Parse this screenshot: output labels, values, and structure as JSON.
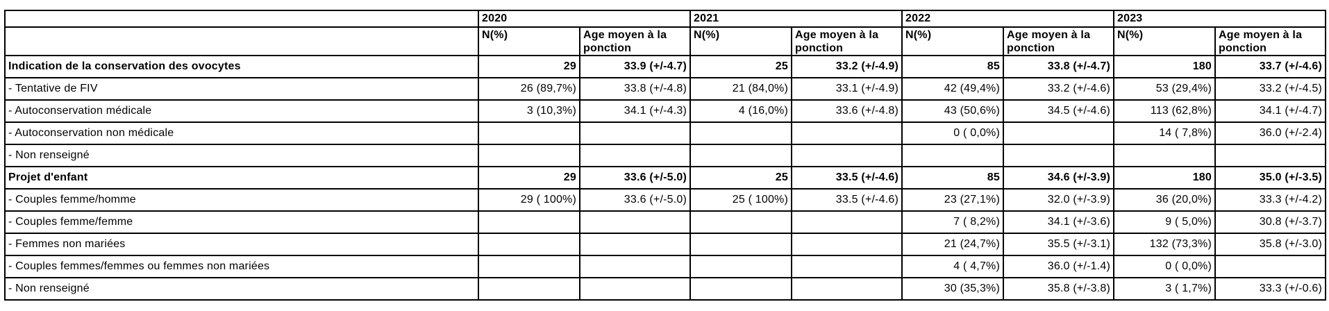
{
  "table": {
    "years": [
      "2020",
      "2021",
      "2022",
      "2023"
    ],
    "subheaders": {
      "n": "N(%)",
      "age": "Age moyen à la ponction"
    },
    "rows": [
      {
        "label": "Indication de la conservation des ovocytes",
        "bold": true,
        "cells": [
          "29",
          "33.9 (+/-4.7)",
          "25",
          "33.2 (+/-4.9)",
          "85",
          "33.8 (+/-4.7)",
          "180",
          "33.7 (+/-4.6)"
        ]
      },
      {
        "label": "- Tentative de FIV",
        "bold": false,
        "cells": [
          "26 (89,7%)",
          "33.8 (+/-4.8)",
          "21 (84,0%)",
          "33.1 (+/-4.9)",
          "42 (49,4%)",
          "33.2 (+/-4.6)",
          "53 (29,4%)",
          "33.2 (+/-4.5)"
        ]
      },
      {
        "label": "- Autoconservation médicale",
        "bold": false,
        "cells": [
          "3 (10,3%)",
          "34.1 (+/-4.3)",
          "4 (16,0%)",
          "33.6 (+/-4.8)",
          "43 (50,6%)",
          "34.5 (+/-4.6)",
          "113 (62,8%)",
          "34.1 (+/-4.7)"
        ]
      },
      {
        "label": "- Autoconservation non médicale",
        "bold": false,
        "cells": [
          "",
          "",
          "",
          "",
          "0 ( 0,0%)",
          "",
          "14 ( 7,8%)",
          "36.0 (+/-2.4)"
        ]
      },
      {
        "label": "- Non renseigné",
        "bold": false,
        "cells": [
          "",
          "",
          "",
          "",
          "",
          "",
          "",
          ""
        ]
      },
      {
        "label": "Projet d'enfant",
        "bold": true,
        "cells": [
          "29",
          "33.6 (+/-5.0)",
          "25",
          "33.5 (+/-4.6)",
          "85",
          "34.6 (+/-3.9)",
          "180",
          "35.0 (+/-3.5)"
        ]
      },
      {
        "label": "- Couples femme/homme",
        "bold": false,
        "cells": [
          "29 ( 100%)",
          "33.6 (+/-5.0)",
          "25 ( 100%)",
          "33.5 (+/-4.6)",
          "23 (27,1%)",
          "32.0 (+/-3.9)",
          "36 (20,0%)",
          "33.3 (+/-4.2)"
        ]
      },
      {
        "label": "- Couples femme/femme",
        "bold": false,
        "cells": [
          "",
          "",
          "",
          "",
          "7 ( 8,2%)",
          "34.1 (+/-3.6)",
          "9 ( 5,0%)",
          "30.8 (+/-3.7)"
        ]
      },
      {
        "label": "- Femmes non mariées",
        "bold": false,
        "cells": [
          "",
          "",
          "",
          "",
          "21 (24,7%)",
          "35.5 (+/-3.1)",
          "132 (73,3%)",
          "35.8 (+/-3.0)"
        ]
      },
      {
        "label": "- Couples femmes/femmes ou femmes non mariées",
        "bold": false,
        "cells": [
          "",
          "",
          "",
          "",
          "4 ( 4,7%)",
          "36.0 (+/-1.4)",
          "0 ( 0,0%)",
          ""
        ]
      },
      {
        "label": "- Non renseigné",
        "bold": false,
        "cells": [
          "",
          "",
          "",
          "",
          "30 (35,3%)",
          "35.8 (+/-3.8)",
          "3 ( 1,7%)",
          "33.3 (+/-0.6)"
        ]
      }
    ]
  }
}
